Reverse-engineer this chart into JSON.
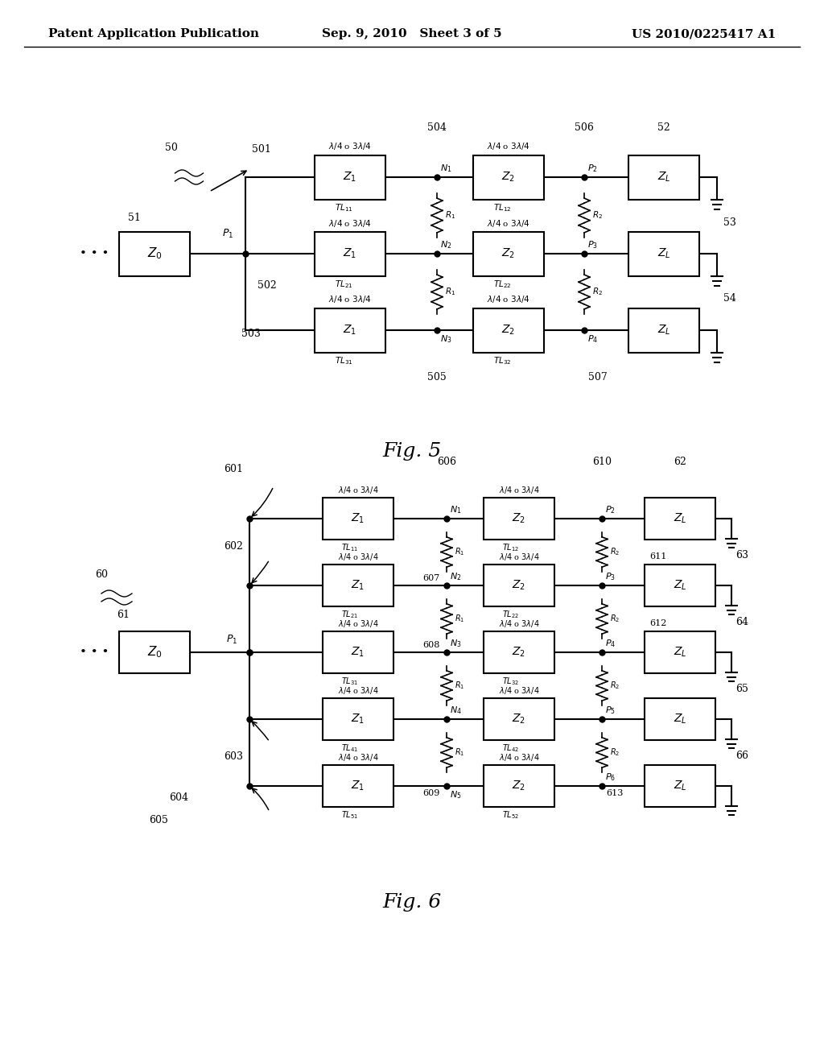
{
  "header": {
    "left": "Patent Application Publication",
    "center": "Sep. 9, 2010   Sheet 3 of 5",
    "right": "US 2010/0225417 A1"
  },
  "bg_color": "#ffffff",
  "line_color": "#000000"
}
